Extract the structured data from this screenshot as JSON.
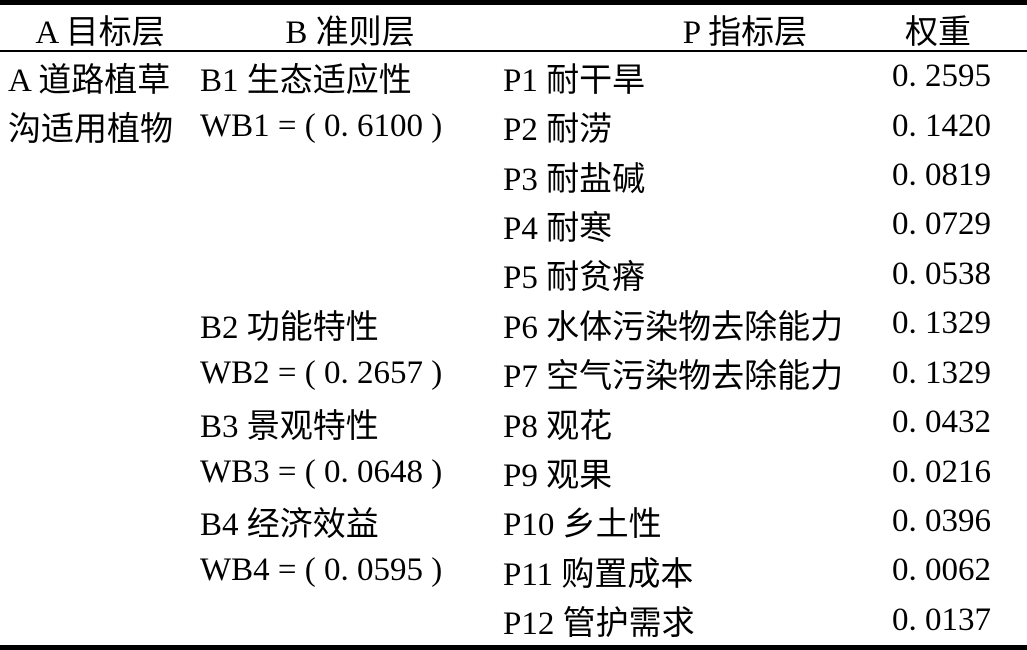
{
  "table": {
    "headers": {
      "target": "A 目标层",
      "criterion": "B 准则层",
      "indicator": "P 指标层",
      "weight": "权重"
    },
    "target": {
      "line1": "A 道路植草",
      "line2": "沟适用植物"
    },
    "criteria": [
      {
        "name": "B1 生态适应性",
        "weight_label": "WB1 = ( 0. 6100 )"
      },
      {
        "name": "B2 功能特性",
        "weight_label": "WB2 = ( 0. 2657 )"
      },
      {
        "name": "B3 景观特性",
        "weight_label": "WB3 = ( 0. 0648 )"
      },
      {
        "name": "B4 经济效益",
        "weight_label": "WB4 = ( 0. 0595 )"
      }
    ],
    "rows": [
      {
        "indicator": "P1 耐干旱",
        "weight": "0. 2595"
      },
      {
        "indicator": "P2 耐涝",
        "weight": "0. 1420"
      },
      {
        "indicator": "P3 耐盐碱",
        "weight": "0. 0819"
      },
      {
        "indicator": "P4 耐寒",
        "weight": "0. 0729"
      },
      {
        "indicator": "P5 耐贫瘠",
        "weight": "0. 0538"
      },
      {
        "indicator": "P6 水体污染物去除能力",
        "weight": "0. 1329"
      },
      {
        "indicator": "P7 空气污染物去除能力",
        "weight": "0. 1329"
      },
      {
        "indicator": "P8 观花",
        "weight": "0. 0432"
      },
      {
        "indicator": "P9 观果",
        "weight": "0. 0216"
      },
      {
        "indicator": "P10 乡土性",
        "weight": "0. 0396"
      },
      {
        "indicator": "P11 购置成本",
        "weight": "0. 0062"
      },
      {
        "indicator": "P12 管护需求",
        "weight": "0. 0137"
      }
    ]
  }
}
